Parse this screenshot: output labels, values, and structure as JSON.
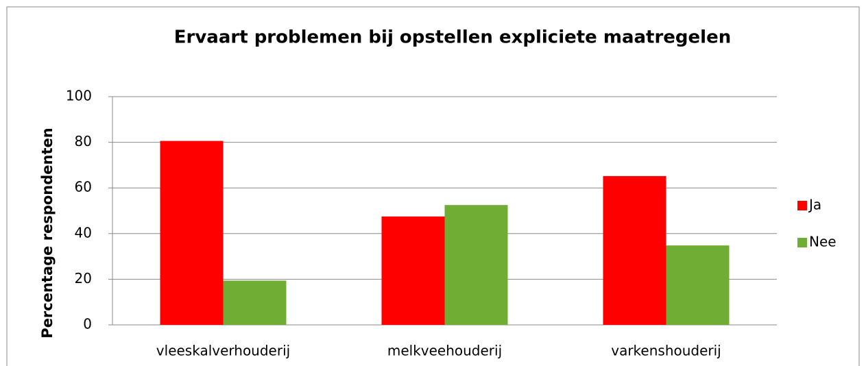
{
  "chart_data": {
    "type": "bar",
    "title": "Ervaart problemen bij opstellen expliciete maatregelen",
    "y_label": "Percentage respondenten",
    "categories": [
      "vleeskalverhouderij",
      "melkveehouderij",
      "varkenshouderij"
    ],
    "series": [
      {
        "name": "Ja",
        "color": "#ff0000",
        "values": [
          80.6,
          47.5,
          65.2
        ]
      },
      {
        "name": "Nee",
        "color": "#70ad35",
        "values": [
          19.4,
          52.5,
          34.8
        ]
      }
    ],
    "ylim": [
      0,
      100
    ],
    "yticks": [
      0,
      20,
      40,
      60,
      80,
      100
    ],
    "grid": true,
    "legend": "right"
  }
}
